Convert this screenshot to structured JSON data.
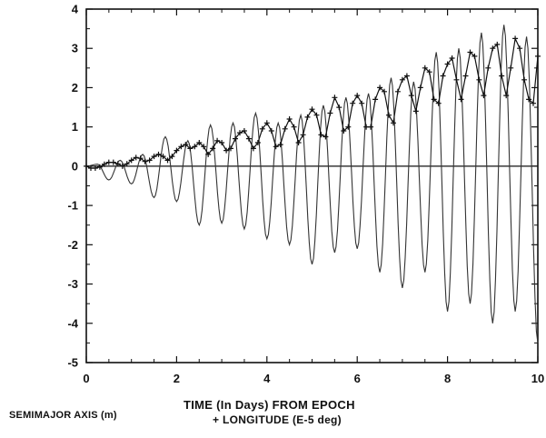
{
  "chart_data": {
    "type": "line",
    "xlabel_line1": "TIME (In Days) FROM EPOCH",
    "xlabel_line2": "+ LONGITUDE (E-5 deg)",
    "ylabel": "SEMIMAJOR AXIS (m)",
    "xlim": [
      0,
      10
    ],
    "ylim": [
      -5,
      4
    ],
    "x_ticks": [
      0,
      2,
      4,
      6,
      8,
      10
    ],
    "y_ticks": [
      4,
      3,
      2,
      1,
      0,
      -1,
      -2,
      -3,
      -4,
      -5
    ],
    "grid": false,
    "series": [
      {
        "style": "thin solid line",
        "color": "#333333",
        "oscillation_period_days": 0.5,
        "x": [
          0,
          0.25,
          0.5,
          0.75,
          1,
          1.25,
          1.5,
          1.75,
          2,
          2.25,
          2.5,
          2.75,
          3,
          3.25,
          3.5,
          3.75,
          4,
          4.25,
          4.5,
          4.75,
          5,
          5.25,
          5.5,
          5.75,
          6,
          6.25,
          6.5,
          6.75,
          7,
          7.25,
          7.5,
          7.75,
          8,
          8.25,
          8.5,
          8.75,
          9,
          9.25,
          9.5,
          9.75,
          10
        ],
        "y": [
          0,
          0.05,
          -0.35,
          0.15,
          -0.45,
          0.3,
          -0.8,
          0.75,
          -0.9,
          0.65,
          -1.5,
          1.05,
          -1.45,
          1.1,
          -1.6,
          1.35,
          -1.85,
          1.1,
          -2.0,
          1.3,
          -2.5,
          1.55,
          -2.2,
          1.75,
          -2.1,
          1.85,
          -2.7,
          2.25,
          -3.1,
          2.15,
          -2.7,
          2.9,
          -3.7,
          3.0,
          -3.5,
          3.4,
          -4.0,
          3.6,
          -3.7,
          3.3,
          -4.5
        ]
      },
      {
        "style": "line with + markers",
        "color": "#111111",
        "x": [
          0,
          0.1,
          0.2,
          0.3,
          0.4,
          0.5,
          0.6,
          0.7,
          0.8,
          0.9,
          1,
          1.1,
          1.2,
          1.3,
          1.4,
          1.5,
          1.6,
          1.7,
          1.8,
          1.9,
          2,
          2.1,
          2.2,
          2.3,
          2.4,
          2.5,
          2.6,
          2.7,
          2.8,
          2.9,
          3,
          3.1,
          3.2,
          3.3,
          3.4,
          3.5,
          3.6,
          3.7,
          3.8,
          3.9,
          4,
          4.1,
          4.2,
          4.3,
          4.4,
          4.5,
          4.6,
          4.7,
          4.8,
          4.9,
          5,
          5.1,
          5.2,
          5.3,
          5.4,
          5.5,
          5.6,
          5.7,
          5.8,
          5.9,
          6,
          6.1,
          6.2,
          6.3,
          6.4,
          6.5,
          6.6,
          6.7,
          6.8,
          6.9,
          7,
          7.1,
          7.2,
          7.3,
          7.4,
          7.5,
          7.6,
          7.7,
          7.8,
          7.9,
          8,
          8.1,
          8.2,
          8.3,
          8.4,
          8.5,
          8.6,
          8.7,
          8.8,
          8.9,
          9,
          9.1,
          9.2,
          9.3,
          9.4,
          9.5,
          9.6,
          9.7,
          9.8,
          9.9,
          10
        ],
        "y": [
          0,
          -0.05,
          -0.05,
          -0.02,
          0.05,
          0.1,
          0.1,
          0.06,
          0.0,
          0.06,
          0.15,
          0.22,
          0.2,
          0.12,
          0.15,
          0.25,
          0.3,
          0.25,
          0.15,
          0.25,
          0.4,
          0.5,
          0.55,
          0.45,
          0.5,
          0.6,
          0.5,
          0.3,
          0.45,
          0.65,
          0.6,
          0.4,
          0.45,
          0.7,
          0.85,
          0.9,
          0.7,
          0.45,
          0.6,
          0.95,
          1.1,
          0.9,
          0.5,
          0.55,
          0.95,
          1.2,
          1.0,
          0.6,
          0.8,
          1.25,
          1.45,
          1.3,
          0.8,
          0.75,
          1.35,
          1.75,
          1.5,
          0.9,
          1.0,
          1.6,
          1.8,
          1.6,
          1.0,
          1.0,
          1.7,
          2.0,
          1.9,
          1.3,
          1.1,
          1.9,
          2.2,
          2.3,
          1.8,
          1.4,
          2.0,
          2.5,
          2.4,
          1.7,
          1.6,
          2.3,
          2.6,
          2.75,
          2.2,
          1.7,
          2.3,
          2.9,
          2.8,
          2.2,
          1.8,
          2.5,
          3.0,
          3.1,
          2.3,
          1.8,
          2.5,
          3.25,
          3.0,
          2.2,
          1.7,
          1.6,
          2.8
        ]
      }
    ]
  }
}
